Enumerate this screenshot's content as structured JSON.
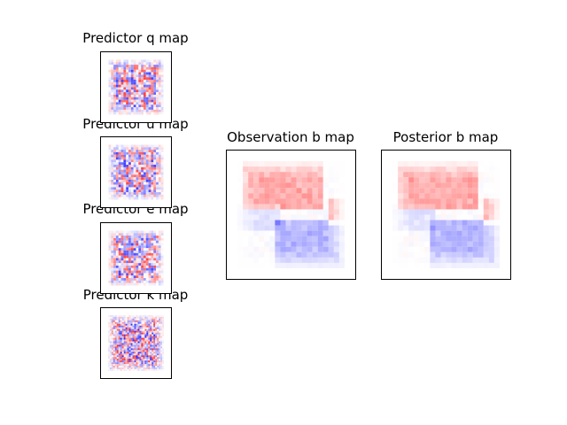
{
  "chart_data": [
    {
      "type": "heatmap",
      "title": "Predictor q map",
      "texture": "medium-noise",
      "colormap": [
        "#0000ff",
        "#ffffff",
        "#ff0000"
      ]
    },
    {
      "type": "heatmap",
      "title": "Predictor u map",
      "texture": "medium-noise",
      "colormap": [
        "#0000ff",
        "#ffffff",
        "#ff0000"
      ]
    },
    {
      "type": "heatmap",
      "title": "Predictor e map",
      "texture": "medium-noise",
      "colormap": [
        "#0000ff",
        "#ffffff",
        "#ff0000"
      ]
    },
    {
      "type": "heatmap",
      "title": "Predictor k map",
      "texture": "fine-noise",
      "colormap": [
        "#0000ff",
        "#ffffff",
        "#ff0000"
      ]
    },
    {
      "type": "heatmap",
      "title": "Observation b map",
      "texture": "smooth-field",
      "colormap": [
        "#0000ff",
        "#ffffff",
        "#ff0000"
      ]
    },
    {
      "type": "heatmap",
      "title": "Posterior b map",
      "texture": "smooth-field",
      "colormap": [
        "#0000ff",
        "#ffffff",
        "#ff0000"
      ]
    }
  ]
}
